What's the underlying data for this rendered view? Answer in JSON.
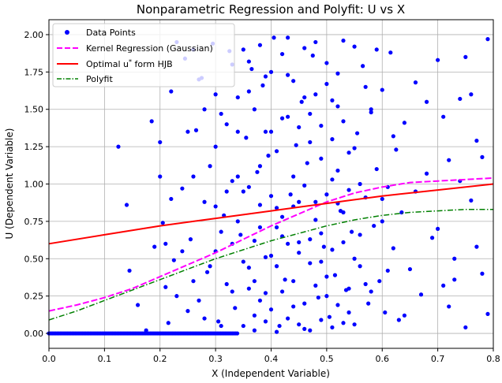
{
  "chart_data": {
    "type": "scatter",
    "title": "Nonparametric Regression and Polyfit: U vs X",
    "xlabel": "X (Independent Variable)",
    "ylabel": "U (Dependent Variable)",
    "xlim": [
      0.0,
      0.8
    ],
    "ylim": [
      -0.1,
      2.1
    ],
    "xticks": [
      "0.0",
      "0.1",
      "0.2",
      "0.3",
      "0.4",
      "0.5",
      "0.6",
      "0.7",
      "0.8"
    ],
    "xtick_values": [
      0.0,
      0.1,
      0.2,
      0.3,
      0.4,
      0.5,
      0.6,
      0.7,
      0.8
    ],
    "yticks": [
      "0.00",
      "0.25",
      "0.50",
      "0.75",
      "1.00",
      "1.25",
      "1.50",
      "1.75",
      "2.00"
    ],
    "ytick_values": [
      0.0,
      0.25,
      0.5,
      0.75,
      1.0,
      1.25,
      1.5,
      1.75,
      2.0
    ],
    "grid": true,
    "legend_position": "top-left",
    "legend": [
      {
        "label": "Data Points",
        "kind": "marker",
        "color": "#0000ff"
      },
      {
        "label": "Kernel Regression (Gaussian)",
        "kind": "dashed",
        "color": "#ff00ff"
      },
      {
        "label": "Optimal u* form HJB",
        "kind": "solid",
        "color": "#ff0000",
        "label_main": "Optimal u",
        "label_sup": "*",
        "label_rest": " form HJB"
      },
      {
        "label": "Polyfit",
        "kind": "dashdot",
        "color": "#008000"
      }
    ],
    "scatter_points": [
      [
        0.215,
        0.07
      ],
      [
        0.23,
        1.95
      ],
      [
        0.26,
        1.05
      ],
      [
        0.125,
        1.25
      ],
      [
        0.14,
        0.86
      ],
      [
        0.145,
        0.42
      ],
      [
        0.16,
        0.19
      ],
      [
        0.175,
        0.02
      ],
      [
        0.19,
        0.58
      ],
      [
        0.185,
        1.42
      ],
      [
        0.2,
        1.28
      ],
      [
        0.205,
        0.74
      ],
      [
        0.21,
        0.31
      ],
      [
        0.22,
        1.62
      ],
      [
        0.225,
        0.49
      ],
      [
        0.24,
        0.97
      ],
      [
        0.245,
        1.84
      ],
      [
        0.25,
        0.15
      ],
      [
        0.255,
        0.63
      ],
      [
        0.265,
        1.36
      ],
      [
        0.27,
        0.22
      ],
      [
        0.275,
        1.71
      ],
      [
        0.28,
        0.88
      ],
      [
        0.285,
        0.41
      ],
      [
        0.29,
        1.12
      ],
      [
        0.295,
        1.94
      ],
      [
        0.3,
        0.55
      ],
      [
        0.305,
        0.08
      ],
      [
        0.31,
        1.47
      ],
      [
        0.315,
        0.79
      ],
      [
        0.32,
        0.33
      ],
      [
        0.325,
        1.89
      ],
      [
        0.33,
        1.02
      ],
      [
        0.335,
        0.17
      ],
      [
        0.34,
        1.58
      ],
      [
        0.345,
        0.66
      ],
      [
        0.35,
        0.95
      ],
      [
        0.355,
        1.31
      ],
      [
        0.36,
        0.44
      ],
      [
        0.365,
        1.77
      ],
      [
        0.37,
        0.12
      ],
      [
        0.375,
        1.08
      ],
      [
        0.38,
        0.71
      ],
      [
        0.385,
        1.66
      ],
      [
        0.39,
        0.27
      ],
      [
        0.395,
        1.19
      ],
      [
        0.4,
        0.52
      ],
      [
        0.405,
        1.98
      ],
      [
        0.41,
        0.84
      ],
      [
        0.415,
        0.05
      ],
      [
        0.42,
        1.44
      ],
      [
        0.425,
        0.36
      ],
      [
        0.43,
        1.73
      ],
      [
        0.435,
        0.93
      ],
      [
        0.44,
        0.18
      ],
      [
        0.445,
        1.26
      ],
      [
        0.45,
        0.61
      ],
      [
        0.455,
        1.55
      ],
      [
        0.46,
        0.03
      ],
      [
        0.465,
        1.14
      ],
      [
        0.47,
        0.47
      ],
      [
        0.475,
        1.86
      ],
      [
        0.48,
        0.76
      ],
      [
        0.485,
        0.24
      ],
      [
        0.49,
        1.39
      ],
      [
        0.495,
        0.58
      ],
      [
        0.5,
        1.67
      ],
      [
        0.505,
        0.11
      ],
      [
        0.51,
        1.03
      ],
      [
        0.515,
        0.39
      ],
      [
        0.52,
        1.52
      ],
      [
        0.525,
        0.82
      ],
      [
        0.53,
        1.96
      ],
      [
        0.535,
        0.29
      ],
      [
        0.54,
        1.21
      ],
      [
        0.545,
        0.68
      ],
      [
        0.55,
        0.06
      ],
      [
        0.555,
        1.34
      ],
      [
        0.56,
        0.45
      ],
      [
        0.565,
        1.79
      ],
      [
        0.57,
        0.91
      ],
      [
        0.575,
        0.2
      ],
      [
        0.58,
        1.48
      ],
      [
        0.585,
        0.72
      ],
      [
        0.59,
        1.1
      ],
      [
        0.595,
        0.35
      ],
      [
        0.6,
        1.63
      ],
      [
        0.605,
        0.14
      ],
      [
        0.61,
        0.98
      ],
      [
        0.615,
        1.88
      ],
      [
        0.62,
        0.57
      ],
      [
        0.625,
        1.23
      ],
      [
        0.63,
        0.09
      ],
      [
        0.635,
        0.81
      ],
      [
        0.64,
        1.41
      ],
      [
        0.65,
        0.43
      ],
      [
        0.66,
        1.68
      ],
      [
        0.67,
        0.26
      ],
      [
        0.68,
        1.07
      ],
      [
        0.69,
        0.64
      ],
      [
        0.7,
        1.83
      ],
      [
        0.71,
        0.32
      ],
      [
        0.72,
        1.16
      ],
      [
        0.73,
        0.5
      ],
      [
        0.74,
        1.57
      ],
      [
        0.75,
        0.04
      ],
      [
        0.76,
        0.89
      ],
      [
        0.77,
        1.29
      ],
      [
        0.78,
        0.4
      ],
      [
        0.79,
        1.97
      ],
      [
        0.35,
        1.9
      ],
      [
        0.36,
        1.82
      ],
      [
        0.38,
        1.93
      ],
      [
        0.4,
        1.75
      ],
      [
        0.42,
        1.87
      ],
      [
        0.44,
        1.69
      ],
      [
        0.46,
        1.91
      ],
      [
        0.48,
        1.6
      ],
      [
        0.5,
        1.81
      ],
      [
        0.52,
        1.74
      ],
      [
        0.37,
        1.5
      ],
      [
        0.39,
        1.35
      ],
      [
        0.41,
        1.22
      ],
      [
        0.43,
        1.45
      ],
      [
        0.45,
        1.38
      ],
      [
        0.47,
        1.28
      ],
      [
        0.49,
        1.17
      ],
      [
        0.51,
        1.3
      ],
      [
        0.53,
        1.42
      ],
      [
        0.55,
        1.24
      ],
      [
        0.36,
        0.98
      ],
      [
        0.38,
        0.86
      ],
      [
        0.4,
        0.92
      ],
      [
        0.42,
        0.78
      ],
      [
        0.44,
        0.85
      ],
      [
        0.46,
        0.99
      ],
      [
        0.48,
        0.88
      ],
      [
        0.5,
        0.93
      ],
      [
        0.52,
        0.87
      ],
      [
        0.54,
        0.96
      ],
      [
        0.37,
        0.62
      ],
      [
        0.39,
        0.51
      ],
      [
        0.41,
        0.45
      ],
      [
        0.43,
        0.6
      ],
      [
        0.45,
        0.54
      ],
      [
        0.47,
        0.63
      ],
      [
        0.49,
        0.48
      ],
      [
        0.51,
        0.56
      ],
      [
        0.53,
        0.61
      ],
      [
        0.55,
        0.5
      ],
      [
        0.36,
        0.3
      ],
      [
        0.38,
        0.22
      ],
      [
        0.4,
        0.16
      ],
      [
        0.42,
        0.28
      ],
      [
        0.44,
        0.35
      ],
      [
        0.46,
        0.2
      ],
      [
        0.48,
        0.32
      ],
      [
        0.5,
        0.25
      ],
      [
        0.52,
        0.19
      ],
      [
        0.54,
        0.3
      ],
      [
        0.35,
        0.05
      ],
      [
        0.37,
        0.02
      ],
      [
        0.39,
        0.08
      ],
      [
        0.41,
        0.01
      ],
      [
        0.43,
        0.1
      ],
      [
        0.45,
        0.06
      ],
      [
        0.47,
        0.02
      ],
      [
        0.49,
        0.09
      ],
      [
        0.51,
        0.04
      ],
      [
        0.53,
        0.07
      ],
      [
        0.2,
        1.05
      ],
      [
        0.22,
        0.9
      ],
      [
        0.24,
        0.55
      ],
      [
        0.26,
        0.35
      ],
      [
        0.28,
        1.5
      ],
      [
        0.3,
        1.25
      ],
      [
        0.32,
        0.95
      ],
      [
        0.34,
        0.75
      ],
      [
        0.33,
        1.8
      ],
      [
        0.31,
        0.05
      ],
      [
        0.21,
        0.6
      ],
      [
        0.23,
        0.25
      ],
      [
        0.25,
        1.35
      ],
      [
        0.27,
        1.7
      ],
      [
        0.29,
        0.45
      ],
      [
        0.33,
        0.6
      ],
      [
        0.34,
        1.35
      ],
      [
        0.3,
        0.85
      ],
      [
        0.28,
        0.1
      ],
      [
        0.26,
        1.9
      ],
      [
        0.58,
        0.28
      ],
      [
        0.6,
        0.75
      ],
      [
        0.56,
        1.0
      ],
      [
        0.62,
        1.32
      ],
      [
        0.64,
        0.12
      ],
      [
        0.66,
        0.95
      ],
      [
        0.68,
        1.55
      ],
      [
        0.59,
        1.9
      ],
      [
        0.61,
        0.42
      ],
      [
        0.57,
        1.65
      ],
      [
        0.7,
        0.7
      ],
      [
        0.72,
        0.18
      ],
      [
        0.74,
        1.02
      ],
      [
        0.76,
        1.6
      ],
      [
        0.71,
        1.45
      ],
      [
        0.73,
        0.36
      ],
      [
        0.75,
        1.85
      ],
      [
        0.77,
        0.58
      ],
      [
        0.79,
        0.13
      ],
      [
        0.78,
        1.18
      ],
      [
        0.42,
        0.65
      ],
      [
        0.44,
        1.05
      ],
      [
        0.46,
        1.58
      ],
      [
        0.48,
        1.95
      ],
      [
        0.5,
        0.38
      ],
      [
        0.52,
        1.09
      ],
      [
        0.54,
        0.14
      ],
      [
        0.56,
        0.66
      ],
      [
        0.58,
        1.5
      ],
      [
        0.6,
        0.9
      ],
      [
        0.4,
        1.35
      ],
      [
        0.41,
        0.71
      ],
      [
        0.43,
        1.98
      ],
      [
        0.45,
        0.88
      ],
      [
        0.47,
        1.47
      ],
      [
        0.49,
        0.67
      ],
      [
        0.51,
        1.56
      ],
      [
        0.53,
        0.81
      ],
      [
        0.55,
        1.92
      ],
      [
        0.57,
        0.33
      ],
      [
        0.38,
        1.12
      ],
      [
        0.39,
        1.72
      ],
      [
        0.37,
        0.35
      ],
      [
        0.36,
        1.62
      ],
      [
        0.35,
        0.48
      ],
      [
        0.34,
        1.05
      ],
      [
        0.33,
        0.28
      ],
      [
        0.32,
        1.4
      ],
      [
        0.31,
        0.68
      ],
      [
        0.3,
        1.6
      ]
    ],
    "flat_line_points": {
      "x_start": 0.0,
      "x_end": 0.34,
      "y": 0.0
    },
    "series": [
      {
        "name": "Kernel Regression (Gaussian)",
        "color": "#ff00ff",
        "x": [
          0.0,
          0.05,
          0.1,
          0.15,
          0.2,
          0.25,
          0.3,
          0.35,
          0.4,
          0.45,
          0.5,
          0.55,
          0.6,
          0.65,
          0.7,
          0.75,
          0.8
        ],
        "y": [
          0.15,
          0.19,
          0.24,
          0.3,
          0.38,
          0.46,
          0.54,
          0.63,
          0.72,
          0.8,
          0.88,
          0.94,
          0.98,
          1.01,
          1.02,
          1.03,
          1.04
        ]
      },
      {
        "name": "Optimal u* form HJB",
        "color": "#ff0000",
        "x": [
          0.0,
          0.1,
          0.2,
          0.3,
          0.4,
          0.5,
          0.6,
          0.7,
          0.8
        ],
        "y": [
          0.6,
          0.66,
          0.72,
          0.77,
          0.82,
          0.87,
          0.92,
          0.96,
          1.0
        ]
      },
      {
        "name": "Polyfit",
        "color": "#008000",
        "x": [
          0.0,
          0.05,
          0.1,
          0.15,
          0.2,
          0.25,
          0.3,
          0.35,
          0.4,
          0.45,
          0.5,
          0.55,
          0.6,
          0.65,
          0.7,
          0.75,
          0.8
        ],
        "y": [
          0.09,
          0.15,
          0.22,
          0.29,
          0.36,
          0.43,
          0.5,
          0.56,
          0.62,
          0.67,
          0.72,
          0.76,
          0.79,
          0.81,
          0.82,
          0.83,
          0.83
        ]
      }
    ]
  }
}
